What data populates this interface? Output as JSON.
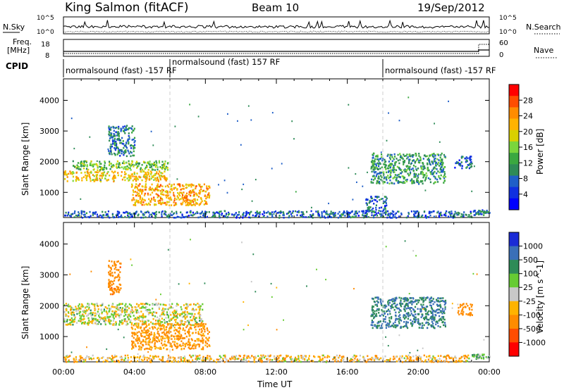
{
  "header": {
    "station": "King Salmon (fitACF)",
    "beam": "Beam 10",
    "date": "19/Sep/2012"
  },
  "strip": {
    "nsky_label": "N.Sky",
    "nsky_ticks": [
      "10^5",
      "10^0"
    ],
    "nsky_right_ticks": [
      "10^5",
      "10^0"
    ],
    "nsearch_label": "N.Search",
    "freq_label_line1": "Freq.",
    "freq_label_line2": "[MHz]",
    "freq_ticks": [
      "18",
      "8"
    ],
    "nave_ticks": [
      "60",
      "0"
    ],
    "nave_label": "Nave",
    "cpid_label": "CPID",
    "cpid_segments": [
      {
        "name": "normalsound (fast) -157 RF",
        "start": 0.0,
        "end": 6.0
      },
      {
        "name": "normalsound (fast) 157 RF",
        "start": 6.0,
        "end": 18.0
      },
      {
        "name": "normalsound (fast) -157 RF",
        "start": 18.0,
        "end": 24.0
      }
    ]
  },
  "panels": {
    "ylabel": "Slant Range [km]",
    "yticks": [
      "4000",
      "3000",
      "2000",
      "1000"
    ],
    "xlabel": "Time UT",
    "xticks": [
      "00:00",
      "04:00",
      "08:00",
      "12:00",
      "16:00",
      "20:00",
      "00:00"
    ]
  },
  "power_scale": {
    "label": "Power [dB]",
    "ticks": [
      "28",
      "24",
      "20",
      "16",
      "12",
      "8",
      "4"
    ],
    "colors": [
      "#ff0000",
      "#ff4d00",
      "#ff8c00",
      "#ffb300",
      "#d8d000",
      "#7ad63c",
      "#3aa840",
      "#2e8b57",
      "#1f5fc8",
      "#1030e0",
      "#0000ff"
    ]
  },
  "velocity_scale": {
    "label": "Velocity [m s^-1]",
    "ticks": [
      "1000",
      "500",
      "100",
      "25",
      "-25",
      "-100",
      "-500",
      "-1000"
    ],
    "colors": [
      "#1a2bd6",
      "#3a6fb8",
      "#2e8b57",
      "#66cc33",
      "#c8c8c8",
      "#ffb300",
      "#ff8c00",
      "#ff4d00",
      "#ff0000"
    ]
  },
  "chart_data": [
    {
      "type": "heatmap",
      "title": "Power",
      "xlabel": "Time UT",
      "ylabel": "Slant Range [km]",
      "xlim": [
        0,
        24
      ],
      "ylim": [
        180,
        4700
      ],
      "colorbar_label": "Power [dB]",
      "colorbar_ticks": [
        4,
        8,
        12,
        16,
        20,
        24,
        28
      ],
      "features": [
        {
          "t0": 0.0,
          "t1": 5.8,
          "r0": 1380,
          "r1": 1720,
          "level": 20
        },
        {
          "t0": 0.5,
          "t1": 6.0,
          "r0": 1750,
          "r1": 2050,
          "level": 14
        },
        {
          "t0": 3.8,
          "t1": 8.2,
          "r0": 600,
          "r1": 1300,
          "level": 22
        },
        {
          "t0": 0.0,
          "t1": 23.0,
          "r0": 200,
          "r1": 420,
          "level": 6
        },
        {
          "t0": 17.3,
          "t1": 21.5,
          "r0": 1300,
          "r1": 2300,
          "level": 10
        },
        {
          "t0": 17.0,
          "t1": 18.2,
          "r0": 400,
          "r1": 900,
          "level": 6
        },
        {
          "t0": 22.0,
          "t1": 23.0,
          "r0": 1800,
          "r1": 2200,
          "level": 6
        },
        {
          "t0": 23.0,
          "t1": 24.0,
          "r0": 280,
          "r1": 450,
          "level": 8
        },
        {
          "t0": 2.5,
          "t1": 4.0,
          "r0": 2200,
          "r1": 3200,
          "level": 8
        }
      ]
    },
    {
      "type": "heatmap",
      "title": "Velocity",
      "xlabel": "Time UT",
      "ylabel": "Slant Range [km]",
      "xlim": [
        0,
        24
      ],
      "ylim": [
        180,
        4700
      ],
      "colorbar_label": "Velocity [m s^-1]",
      "colorbar_ticks": [
        -1000,
        -500,
        -100,
        -25,
        25,
        100,
        500,
        1000
      ],
      "features": [
        {
          "t0": 0.0,
          "t1": 7.8,
          "r0": 1400,
          "r1": 2100,
          "velocity": 0
        },
        {
          "t0": 3.8,
          "t1": 8.2,
          "r0": 600,
          "r1": 1450,
          "velocity": -150
        },
        {
          "t0": 0.0,
          "t1": 23.0,
          "r0": 200,
          "r1": 420,
          "velocity": -60
        },
        {
          "t0": 17.3,
          "t1": 21.5,
          "r0": 1300,
          "r1": 2300,
          "velocity": 300
        },
        {
          "t0": 22.2,
          "t1": 23.0,
          "r0": 1700,
          "r1": 2100,
          "velocity": -300
        },
        {
          "t0": 2.5,
          "t1": 3.2,
          "r0": 2400,
          "r1": 3500,
          "velocity": -400
        },
        {
          "t0": 23.0,
          "t1": 24.0,
          "r0": 300,
          "r1": 450,
          "velocity": 80
        }
      ]
    }
  ]
}
